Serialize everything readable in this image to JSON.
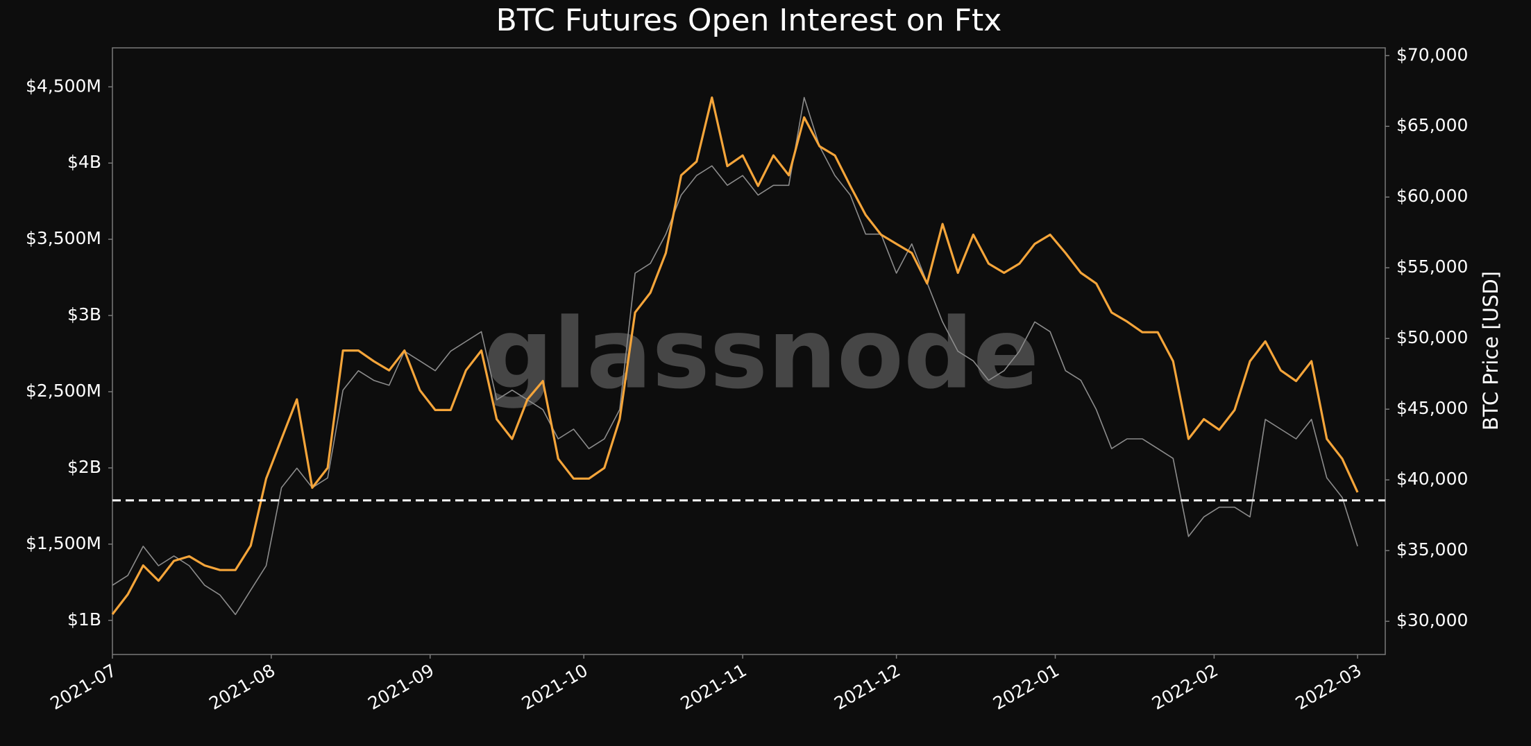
{
  "chart_data": {
    "type": "line",
    "title": "BTC Futures Open Interest on Ftx",
    "y2label": "BTC Price [USD]",
    "watermark": "glassnode",
    "x": [
      0,
      3,
      6,
      9,
      12,
      15,
      18,
      21,
      24,
      27,
      30,
      33,
      36,
      39,
      42,
      45,
      48,
      51,
      54,
      57,
      60,
      63,
      66,
      69,
      72,
      75,
      78,
      81,
      84,
      87,
      90,
      93,
      96,
      99,
      102,
      105,
      108,
      111,
      114,
      117,
      120,
      123,
      126,
      129,
      132,
      135,
      138,
      141,
      144,
      147,
      150,
      153,
      156,
      159,
      162,
      165,
      168,
      171,
      174,
      177,
      180,
      183,
      186,
      189,
      192,
      195,
      198,
      201,
      204,
      207,
      210,
      213,
      216,
      219,
      222,
      225,
      228,
      231,
      234,
      237,
      240,
      243
    ],
    "xlim": [
      0,
      248.4
    ],
    "xticks": [
      {
        "value": 0,
        "label": "2021-07"
      },
      {
        "value": 31,
        "label": "2021-08"
      },
      {
        "value": 62,
        "label": "2021-09"
      },
      {
        "value": 92,
        "label": "2021-10"
      },
      {
        "value": 123,
        "label": "2021-11"
      },
      {
        "value": 153,
        "label": "2021-12"
      },
      {
        "value": 184,
        "label": "2022-01"
      },
      {
        "value": 215,
        "label": "2022-02"
      },
      {
        "value": 243,
        "label": "2022-03"
      }
    ],
    "ylim": [
      776000000,
      4756000000
    ],
    "yticks": [
      {
        "value": 1000000000,
        "label": "$1B"
      },
      {
        "value": 1500000000,
        "label": "$1,500M"
      },
      {
        "value": 2000000000,
        "label": "$2B"
      },
      {
        "value": 2500000000,
        "label": "$2,500M"
      },
      {
        "value": 3000000000,
        "label": "$3B"
      },
      {
        "value": 3500000000,
        "label": "$3,500M"
      },
      {
        "value": 4000000000,
        "label": "$4B"
      },
      {
        "value": 4500000000,
        "label": "$4,500M"
      }
    ],
    "y2lim": [
      27655,
      70552
    ],
    "y2ticks": [
      {
        "value": 30000,
        "label": "$30,000"
      },
      {
        "value": 35000,
        "label": "$35,000"
      },
      {
        "value": 40000,
        "label": "$40,000"
      },
      {
        "value": 45000,
        "label": "$45,000"
      },
      {
        "value": 50000,
        "label": "$50,000"
      },
      {
        "value": 55000,
        "label": "$55,000"
      },
      {
        "value": 60000,
        "label": "$60,000"
      },
      {
        "value": 65000,
        "label": "$65,000"
      },
      {
        "value": 70000,
        "label": "$70,000"
      }
    ],
    "reference_line": 1787000000,
    "grid": false,
    "series": [
      {
        "color": "#8c8c8c",
        "axis": "y2",
        "values": [
          32550,
          33240,
          35310,
          33930,
          34620,
          33930,
          32550,
          31860,
          30480,
          32210,
          33930,
          39450,
          40830,
          39450,
          40140,
          46350,
          47720,
          47040,
          46690,
          49100,
          48410,
          47720,
          49100,
          49790,
          50480,
          45660,
          46350,
          45660,
          44970,
          42900,
          43590,
          42210,
          42900,
          44970,
          54620,
          55310,
          57380,
          60140,
          61520,
          62210,
          60830,
          61520,
          60140,
          60830,
          60830,
          67040,
          63590,
          61520,
          60140,
          57380,
          57380,
          54620,
          56690,
          53930,
          51170,
          49100,
          48410,
          47040,
          47720,
          49100,
          51170,
          50480,
          47720,
          47040,
          44970,
          42210,
          42900,
          42900,
          42210,
          41520,
          36000,
          37380,
          38070,
          38070,
          37380,
          44280,
          43590,
          42900,
          44280,
          40140,
          38760,
          35310
        ]
      },
      {
        "color": "#f5a53a",
        "values": [
          1040000000,
          1170000000,
          1360000000,
          1260000000,
          1390000000,
          1420000000,
          1360000000,
          1330000000,
          1330000000,
          1490000000,
          1930000000,
          2190000000,
          2450000000,
          1870000000,
          2000000000,
          2770000000,
          2770000000,
          2700000000,
          2640000000,
          2770000000,
          2510000000,
          2380000000,
          2380000000,
          2640000000,
          2770000000,
          2320000000,
          2190000000,
          2450000000,
          2570000000,
          2060000000,
          1930000000,
          1930000000,
          2000000000,
          2320000000,
          3020000000,
          3150000000,
          3410000000,
          3920000000,
          4010000000,
          4430000000,
          3980000000,
          4050000000,
          3850000000,
          4050000000,
          3920000000,
          4300000000,
          4110000000,
          4050000000,
          3850000000,
          3660000000,
          3530000000,
          3470000000,
          3410000000,
          3210000000,
          3600000000,
          3280000000,
          3530000000,
          3340000000,
          3280000000,
          3340000000,
          3470000000,
          3530000000,
          3410000000,
          3280000000,
          3210000000,
          3020000000,
          2960000000,
          2890000000,
          2890000000,
          2700000000,
          2190000000,
          2320000000,
          2250000000,
          2380000000,
          2700000000,
          2830000000,
          2640000000,
          2570000000,
          2700000000,
          2190000000,
          2060000000,
          1840000000
        ]
      }
    ]
  }
}
